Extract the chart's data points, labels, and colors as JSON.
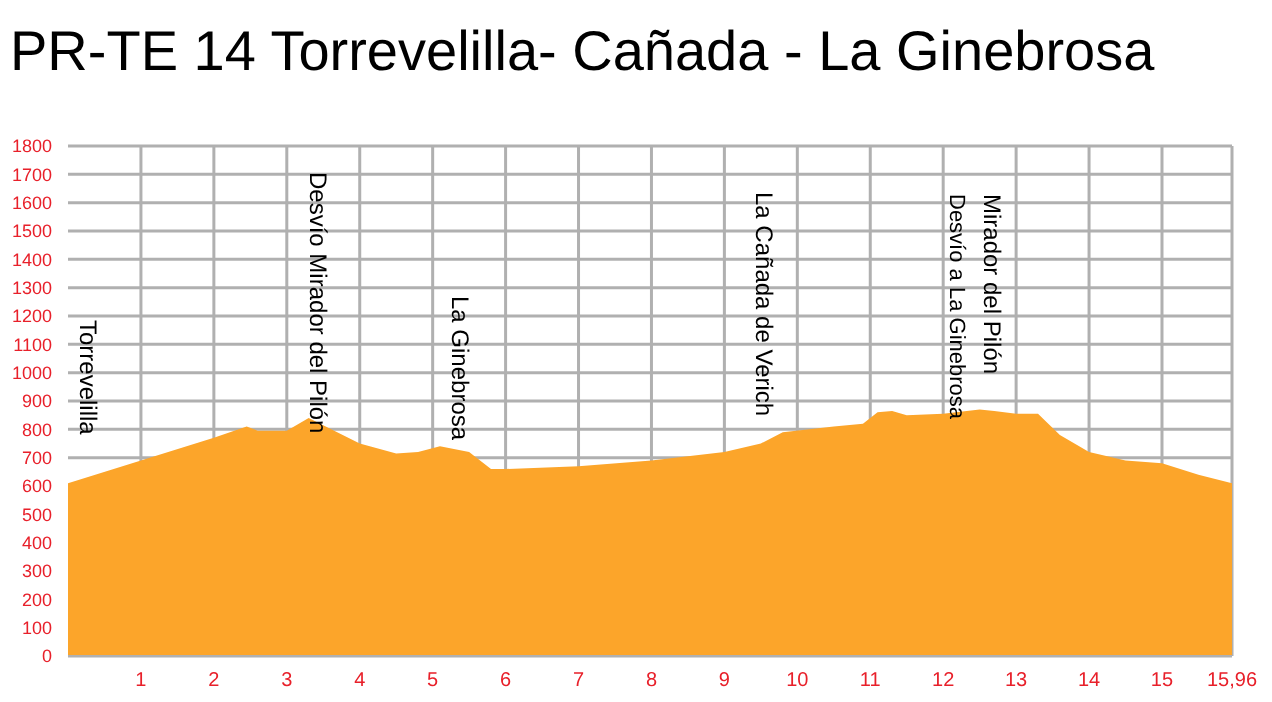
{
  "chart_data": {
    "type": "area",
    "title": "PR-TE 14 Torrevelilla- Cañada - La Ginebrosa",
    "x": [
      0,
      1,
      2,
      2.45,
      2.6,
      3,
      3.3,
      4,
      4.5,
      4.8,
      5.1,
      5.5,
      5.8,
      6,
      7,
      8,
      9,
      9.5,
      9.8,
      10.5,
      10.9,
      11.1,
      11.3,
      11.5,
      12,
      12.5,
      12.7,
      13,
      13.3,
      13.6,
      14,
      14.5,
      15,
      15.5,
      15.96
    ],
    "series": [
      {
        "color": "#fca52a",
        "values": [
          610,
          690,
          770,
          810,
          795,
          795,
          840,
          750,
          715,
          720,
          740,
          720,
          660,
          660,
          670,
          690,
          720,
          750,
          790,
          810,
          820,
          860,
          865,
          850,
          855,
          870,
          865,
          855,
          855,
          780,
          720,
          690,
          680,
          640,
          610
        ]
      }
    ],
    "xlim": [
      0,
      15.96
    ],
    "xticks": [
      1,
      2,
      3,
      4,
      5,
      6,
      7,
      8,
      9,
      10,
      11,
      12,
      13,
      14,
      15,
      {
        "value": 15.96,
        "label": "15,96"
      }
    ],
    "ylim": [
      0,
      1800
    ],
    "yticks": [
      0,
      100,
      200,
      300,
      400,
      500,
      600,
      700,
      800,
      900,
      1000,
      1100,
      1200,
      1300,
      1400,
      1500,
      1600,
      1700,
      1800
    ],
    "grid": true,
    "annotations": [
      "Torrevelilla",
      "Desvío Mirador del Pilón",
      "La Ginebrosa",
      "La Cañada de Verich",
      "Desvío a La Ginebrosa",
      "Mirador del Pilón"
    ]
  }
}
